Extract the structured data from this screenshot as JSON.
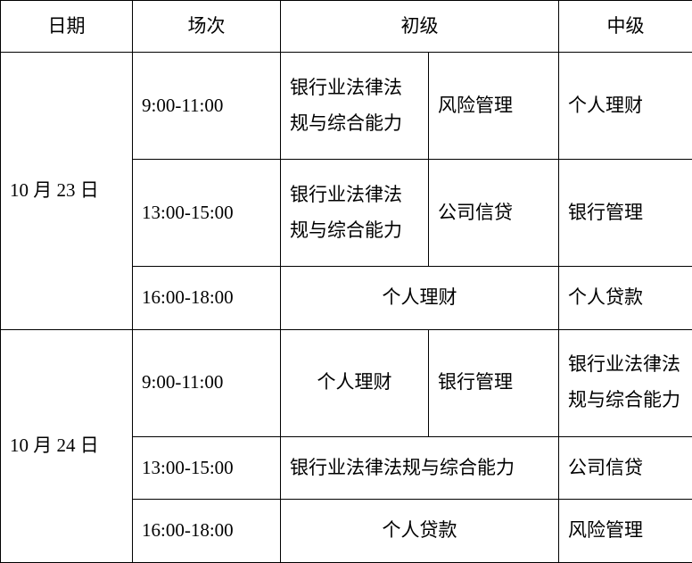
{
  "headers": {
    "date": "日期",
    "session": "场次",
    "junior": "初级",
    "senior": "中级"
  },
  "rows": [
    {
      "date": "10 月 23 日",
      "sessions": [
        {
          "time": "9:00-11:00",
          "junior_a": "银行业法律法规与综合能力",
          "junior_b": "风险管理",
          "senior": "个人理财"
        },
        {
          "time": "13:00-15:00",
          "junior_a": "银行业法律法规与综合能力",
          "junior_b": "公司信贷",
          "senior": "银行管理"
        },
        {
          "time": "16:00-18:00",
          "junior_merged": "个人理财",
          "senior": "个人贷款"
        }
      ]
    },
    {
      "date": "10 月 24 日",
      "sessions": [
        {
          "time": "9:00-11:00",
          "junior_a": "个人理财",
          "junior_b": "银行管理",
          "senior": "银行业法律法规与综合能力"
        },
        {
          "time": "13:00-15:00",
          "junior_merged": "银行业法律法规与综合能力",
          "senior": "公司信贷"
        },
        {
          "time": "16:00-18:00",
          "junior_merged": "个人贷款",
          "senior": "风险管理"
        }
      ]
    }
  ],
  "styling": {
    "border_color": "#000000",
    "background_color": "#ffffff",
    "text_color": "#000000",
    "font_size": 21,
    "font_family": "SimSun",
    "line_height": 1.9
  }
}
